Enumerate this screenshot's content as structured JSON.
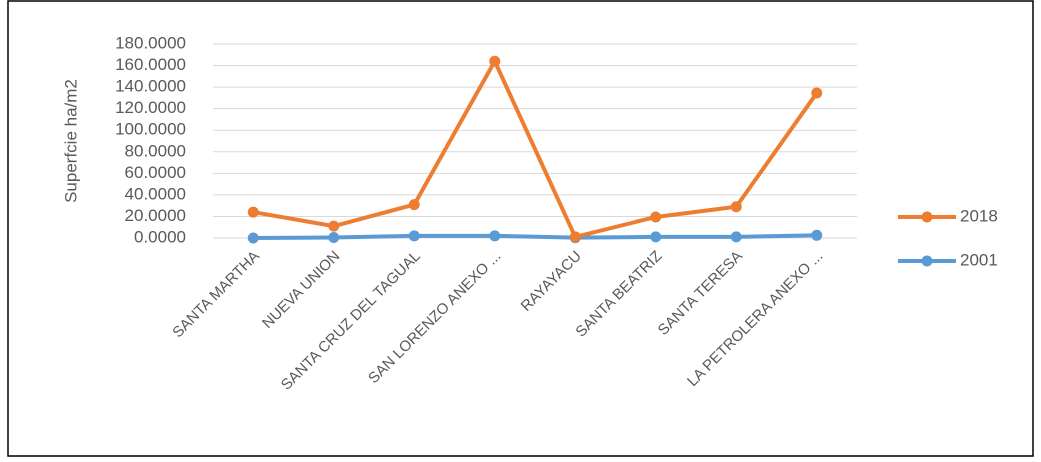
{
  "chart_data": {
    "type": "line",
    "y_label": "Superfcie ha/m2",
    "categories": [
      "SANTA MARTHA",
      "NUEVA UNION",
      "SANTA CRUZ DEL TAGUAL",
      "SAN LORENZO ANEXO ...",
      "RAYAYACU",
      "SANTA BEATRIZ",
      "SANTA TERESA",
      "LA PETROLERA ANEXO ..."
    ],
    "series": [
      {
        "name": "2018",
        "color": "#ed7d31",
        "values": [
          24,
          11,
          31,
          164,
          1,
          19.5,
          29,
          134.5
        ]
      },
      {
        "name": "2001",
        "color": "#5b9bd5",
        "values": [
          0,
          0.5,
          2,
          2,
          0.3,
          1,
          1,
          2.5
        ]
      }
    ],
    "ylim": [
      0,
      180
    ],
    "yticks": [
      {
        "value": 0,
        "label": "0.0000"
      },
      {
        "value": 20,
        "label": "20.0000"
      },
      {
        "value": 40,
        "label": "40.0000"
      },
      {
        "value": 60,
        "label": "60.0000"
      },
      {
        "value": 80,
        "label": "80.0000"
      },
      {
        "value": 100,
        "label": "100.0000"
      },
      {
        "value": 120,
        "label": "120.0000"
      },
      {
        "value": 140,
        "label": "140.0000"
      },
      {
        "value": 160,
        "label": "160.0000"
      },
      {
        "value": 180,
        "label": "180.0000"
      }
    ],
    "grid": true,
    "legend": "right"
  }
}
